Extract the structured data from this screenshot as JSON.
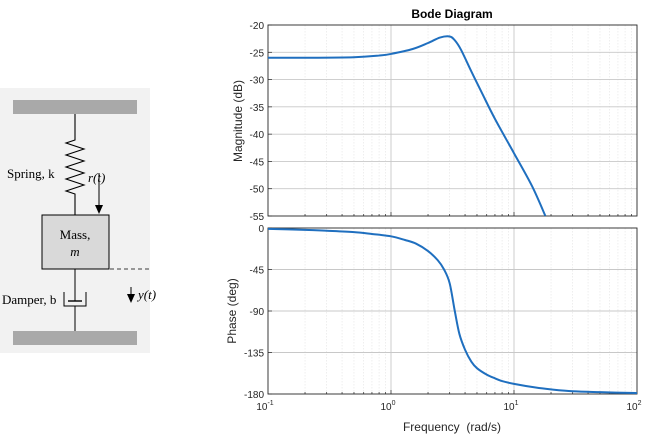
{
  "system_diagram": {
    "spring_label": "Spring, k",
    "spring_symbol": "k",
    "input_label": "r(t)",
    "mass_label": "Mass,",
    "mass_symbol": "m",
    "damper_label": "Damper, b",
    "output_label": "y(t)",
    "colors": {
      "wall": "#a9a9a9",
      "mass_fill": "#d9d9d9",
      "panel_bg": "#f2f2f2",
      "line": "#000000"
    }
  },
  "chart_data": [
    {
      "type": "line",
      "title": "Bode Diagram",
      "ylabel": "Magnitude (dB)",
      "xlabel": "",
      "xscale": "log",
      "xlim": [
        0.1,
        100
      ],
      "ylim": [
        -55,
        -20
      ],
      "yticks": [
        -20,
        -25,
        -30,
        -35,
        -40,
        -45,
        -50,
        -55
      ],
      "grid": true,
      "series": [
        {
          "color": "#1f6fbf",
          "x": [
            0.1,
            0.2,
            0.5,
            0.8,
            1,
            1.5,
            2,
            2.5,
            3,
            3.3,
            3.7,
            4.5,
            5.5,
            7,
            10,
            14,
            18
          ],
          "y": [
            -26,
            -26,
            -25.9,
            -25.6,
            -25.3,
            -24.4,
            -23.3,
            -22.3,
            -22.1,
            -22.8,
            -24.5,
            -28.5,
            -32.5,
            -37.2,
            -43.5,
            -49.5,
            -55
          ]
        }
      ]
    },
    {
      "type": "line",
      "ylabel": "Phase (deg)",
      "xlabel": "Frequency  (rad/s)",
      "xscale": "log",
      "xlim": [
        0.1,
        100
      ],
      "ylim": [
        -180,
        0
      ],
      "yticks": [
        0,
        -45,
        -90,
        -135,
        -180
      ],
      "xticks": [
        {
          "base": "10",
          "exp": "-1",
          "value": 0.1
        },
        {
          "base": "10",
          "exp": "0",
          "value": 1
        },
        {
          "base": "10",
          "exp": "1",
          "value": 10
        },
        {
          "base": "10",
          "exp": "2",
          "value": 100
        }
      ],
      "grid": true,
      "series": [
        {
          "color": "#1f6fbf",
          "x": [
            0.1,
            0.2,
            0.3,
            0.5,
            0.7,
            1,
            1.3,
            1.6,
            2,
            2.4,
            2.7,
            3,
            3.3,
            3.6,
            4,
            4.5,
            5,
            6,
            7,
            8,
            10,
            15,
            20,
            30,
            50,
            100
          ],
          "y": [
            -1,
            -2,
            -3,
            -4.5,
            -6.5,
            -9,
            -13,
            -17,
            -25,
            -35,
            -45,
            -60,
            -90,
            -115,
            -132,
            -145,
            -152,
            -159,
            -163,
            -166,
            -169,
            -173,
            -175,
            -177,
            -178,
            -179
          ]
        }
      ]
    }
  ]
}
